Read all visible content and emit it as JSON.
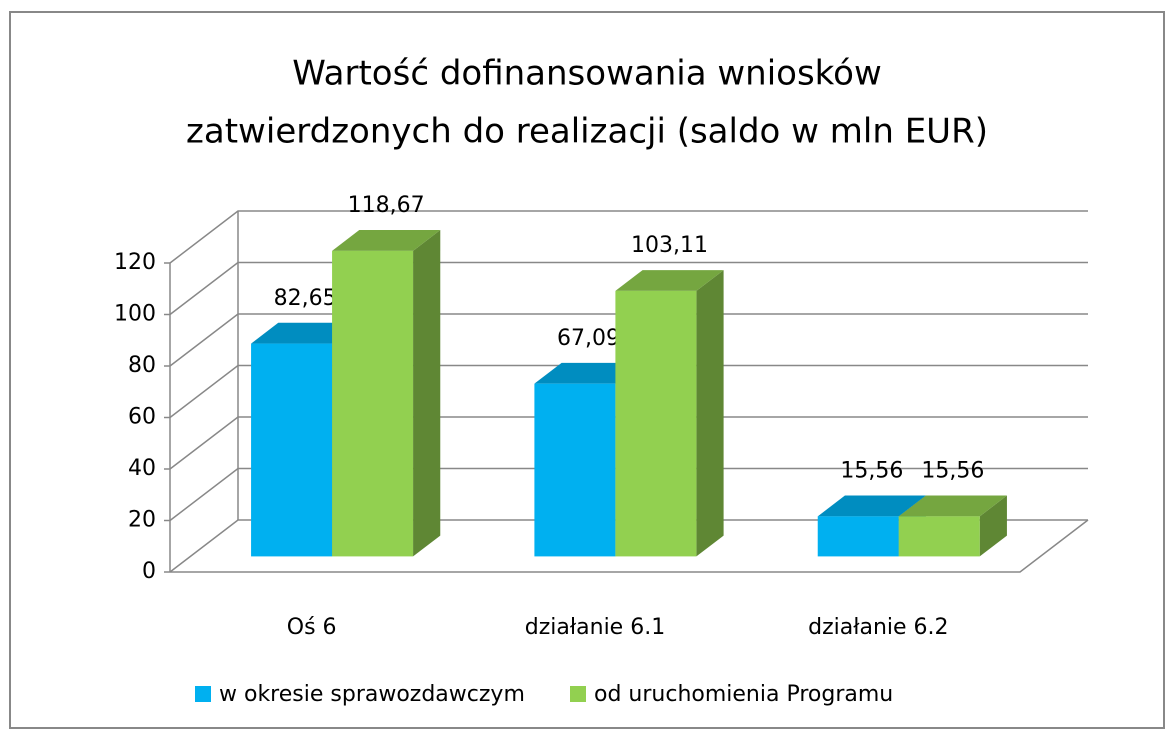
{
  "chart_data": {
    "type": "bar3d",
    "title": [
      "Wartość dofinansowania wniosków",
      "zatwierdzonych do realizacji (saldo w mln EUR)"
    ],
    "categories": [
      "Oś 6",
      "działanie 6.1",
      "działanie 6.2"
    ],
    "series": [
      {
        "name": "w okresie sprawozdawczym",
        "color": "#00b0f0",
        "values": [
          82.65,
          67.09,
          15.56
        ],
        "value_labels": [
          "82,65",
          "67,09",
          "15,56"
        ]
      },
      {
        "name": "od uruchomienia Programu",
        "color": "#92d050",
        "values": [
          118.67,
          103.11,
          15.56
        ],
        "value_labels": [
          "118,67",
          "103,11",
          "15,56"
        ]
      }
    ],
    "ylim": [
      0,
      120
    ],
    "yticks": [
      0,
      20,
      40,
      60,
      80,
      100,
      120
    ],
    "grid": true,
    "legend": "bottom"
  }
}
